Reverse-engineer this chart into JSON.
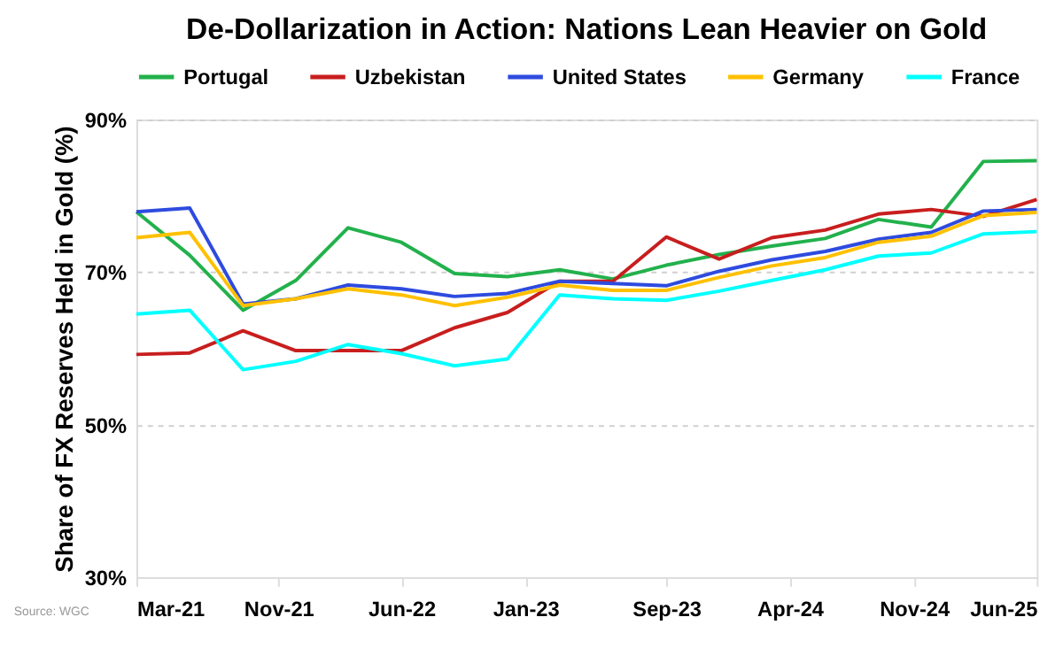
{
  "chart_data": {
    "type": "line",
    "title": "De-Dollarization in Action: Nations Lean Heavier on Gold",
    "ylabel": "Share of FX Reserves Held in Gold (%)",
    "x": [
      "2021-03",
      "2021-06",
      "2021-09",
      "2021-12",
      "2022-03",
      "2022-06",
      "2022-09",
      "2022-12",
      "2023-03",
      "2023-06",
      "2023-09",
      "2023-12",
      "2024-03",
      "2024-06",
      "2024-09",
      "2024-12",
      "2025-03",
      "2025-06"
    ],
    "series": [
      {
        "name": "Portugal",
        "color": "#22b14c",
        "values": [
          77.9,
          72.2,
          65.0,
          68.9,
          75.8,
          73.9,
          69.8,
          69.4,
          70.3,
          69.1,
          70.9,
          72.3,
          73.4,
          74.4,
          76.9,
          75.9,
          84.5,
          84.6
        ]
      },
      {
        "name": "Uzbekistan",
        "color": "#c81e1e",
        "values": [
          59.2,
          59.4,
          62.3,
          59.7,
          59.7,
          59.7,
          62.7,
          64.7,
          68.8,
          68.8,
          74.6,
          71.7,
          74.5,
          75.5,
          77.6,
          78.2,
          77.3,
          79.5
        ]
      },
      {
        "name": "United States",
        "color": "#2e4bdf",
        "values": [
          77.9,
          78.4,
          65.8,
          66.5,
          68.3,
          67.8,
          66.8,
          67.2,
          68.8,
          68.5,
          68.2,
          70.1,
          71.6,
          72.7,
          74.3,
          75.2,
          78.0,
          78.2
        ]
      },
      {
        "name": "Germany",
        "color": "#ffc000",
        "values": [
          74.5,
          75.2,
          65.6,
          66.5,
          67.8,
          67.0,
          65.6,
          66.7,
          68.3,
          67.6,
          67.6,
          69.3,
          70.8,
          71.9,
          73.9,
          74.7,
          77.4,
          77.8
        ]
      },
      {
        "name": "France",
        "color": "#00ffff",
        "values": [
          64.5,
          65.0,
          57.2,
          58.3,
          60.5,
          59.3,
          57.7,
          58.6,
          67.0,
          66.5,
          66.3,
          67.5,
          68.9,
          70.3,
          72.1,
          72.5,
          75.0,
          75.3
        ]
      }
    ],
    "xlim": [
      "2021-03",
      "2025-06"
    ],
    "xticks": [
      {
        "value": "2021-03",
        "label": "Mar-21"
      },
      {
        "value": "2021-11",
        "label": "Nov-21"
      },
      {
        "value": "2022-06",
        "label": "Jun-22"
      },
      {
        "value": "2023-01",
        "label": "Jan-23"
      },
      {
        "value": "2023-09",
        "label": "Sep-23"
      },
      {
        "value": "2024-04",
        "label": "Apr-24"
      },
      {
        "value": "2024-11",
        "label": "Nov-24"
      },
      {
        "value": "2025-06",
        "label": "Jun-25"
      }
    ],
    "ylim": [
      30,
      90
    ],
    "yticks": [
      {
        "value": 30,
        "label": "30%"
      },
      {
        "value": 50,
        "label": "50%"
      },
      {
        "value": 70,
        "label": "70%"
      },
      {
        "value": 90,
        "label": "90%"
      }
    ],
    "grid": "y",
    "legend": "top",
    "marker": "none",
    "line_style": "solid",
    "annotations": [
      "Source: WGC"
    ]
  }
}
